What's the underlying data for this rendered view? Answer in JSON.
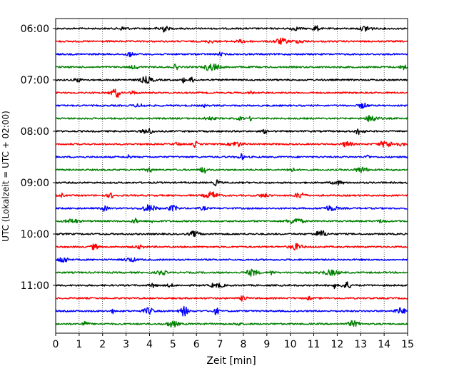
{
  "chart_data": {
    "type": "line",
    "title": "",
    "xlabel": "Zeit  [min]",
    "ylabel": "UTC (Lokalzeit = UTC + 02:00)",
    "xlim": [
      0,
      15
    ],
    "x_ticks": [
      "0",
      "1",
      "2",
      "3",
      "4",
      "5",
      "6",
      "7",
      "8",
      "9",
      "10",
      "11",
      "12",
      "13",
      "14",
      "15"
    ],
    "y_ticks": [
      "06:00",
      "07:00",
      "08:00",
      "09:00",
      "10:00",
      "11:00"
    ],
    "grid": "vertical dotted",
    "line_interval_minutes": 15,
    "color_cycle": [
      "#000000",
      "#ff0000",
      "#0000ff",
      "#008000"
    ],
    "series": [
      {
        "label": "06:00"
      },
      {
        "label": "06:15"
      },
      {
        "label": "06:30"
      },
      {
        "label": "06:45"
      },
      {
        "label": "07:00"
      },
      {
        "label": "07:15"
      },
      {
        "label": "07:30"
      },
      {
        "label": "07:45"
      },
      {
        "label": "08:00"
      },
      {
        "label": "08:15"
      },
      {
        "label": "08:30"
      },
      {
        "label": "08:45"
      },
      {
        "label": "09:00"
      },
      {
        "label": "09:15"
      },
      {
        "label": "09:30"
      },
      {
        "label": "09:45"
      },
      {
        "label": "10:00"
      },
      {
        "label": "10:15"
      },
      {
        "label": "10:30"
      },
      {
        "label": "10:45"
      },
      {
        "label": "11:00"
      },
      {
        "label": "11:15"
      },
      {
        "label": "11:30"
      },
      {
        "label": "11:45"
      }
    ]
  }
}
